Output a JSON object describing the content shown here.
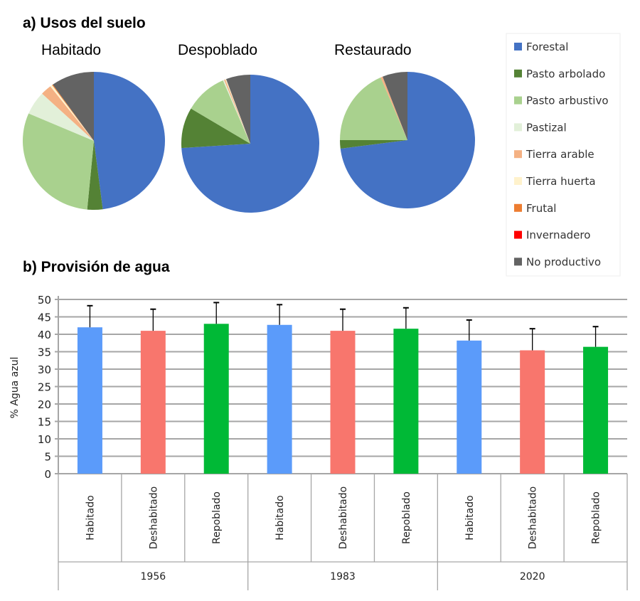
{
  "chart_data": [
    {
      "type": "pie",
      "section_title": "a) Usos del suelo",
      "categories": [
        "Forestal",
        "Pasto arbolado",
        "Pasto arbustivo",
        "Pastizal",
        "Tierra arable",
        "Tierra huerta",
        "Frutal",
        "Invernadero",
        "No productivo"
      ],
      "colors": [
        "#4472C4",
        "#548235",
        "#A9D18E",
        "#E2F0D9",
        "#F4B183",
        "#FFF2CC",
        "#ED7D31",
        "#FF0000",
        "#636363"
      ],
      "legend_position": "right",
      "pies": [
        {
          "title": "Habitado",
          "values": [
            48,
            3.5,
            30,
            5.5,
            2.5,
            0.5,
            0.2,
            0,
            9.8
          ]
        },
        {
          "title": "Despoblado",
          "values": [
            74,
            9.5,
            10,
            0.3,
            0.3,
            0.2,
            0,
            0,
            5.7
          ]
        },
        {
          "title": "Restaurado",
          "values": [
            73,
            2,
            18.5,
            0,
            0.5,
            0,
            0,
            0,
            6
          ]
        }
      ]
    },
    {
      "type": "bar",
      "section_title": "b) Provisión de agua",
      "ylabel": "% Agua azul",
      "ylim": [
        0,
        50
      ],
      "yticks": [
        0,
        5,
        10,
        15,
        20,
        25,
        30,
        35,
        40,
        45,
        50
      ],
      "grid": true,
      "groups": [
        "1956",
        "1983",
        "2020"
      ],
      "categories": [
        "Habitado",
        "Deshabitado",
        "Repoblado",
        "Habitado",
        "Deshabitado",
        "Repoblado",
        "Habitado",
        "Deshabitado",
        "Repoblado"
      ],
      "values": [
        42,
        41,
        43,
        42.7,
        41,
        41.6,
        38.2,
        35.4,
        36.4
      ],
      "error_plus": [
        6.2,
        6.2,
        6.1,
        5.8,
        6.2,
        6.0,
        5.9,
        6.2,
        5.8
      ],
      "colors": [
        "#5B9BFA",
        "#F8766D",
        "#00B936"
      ]
    }
  ]
}
